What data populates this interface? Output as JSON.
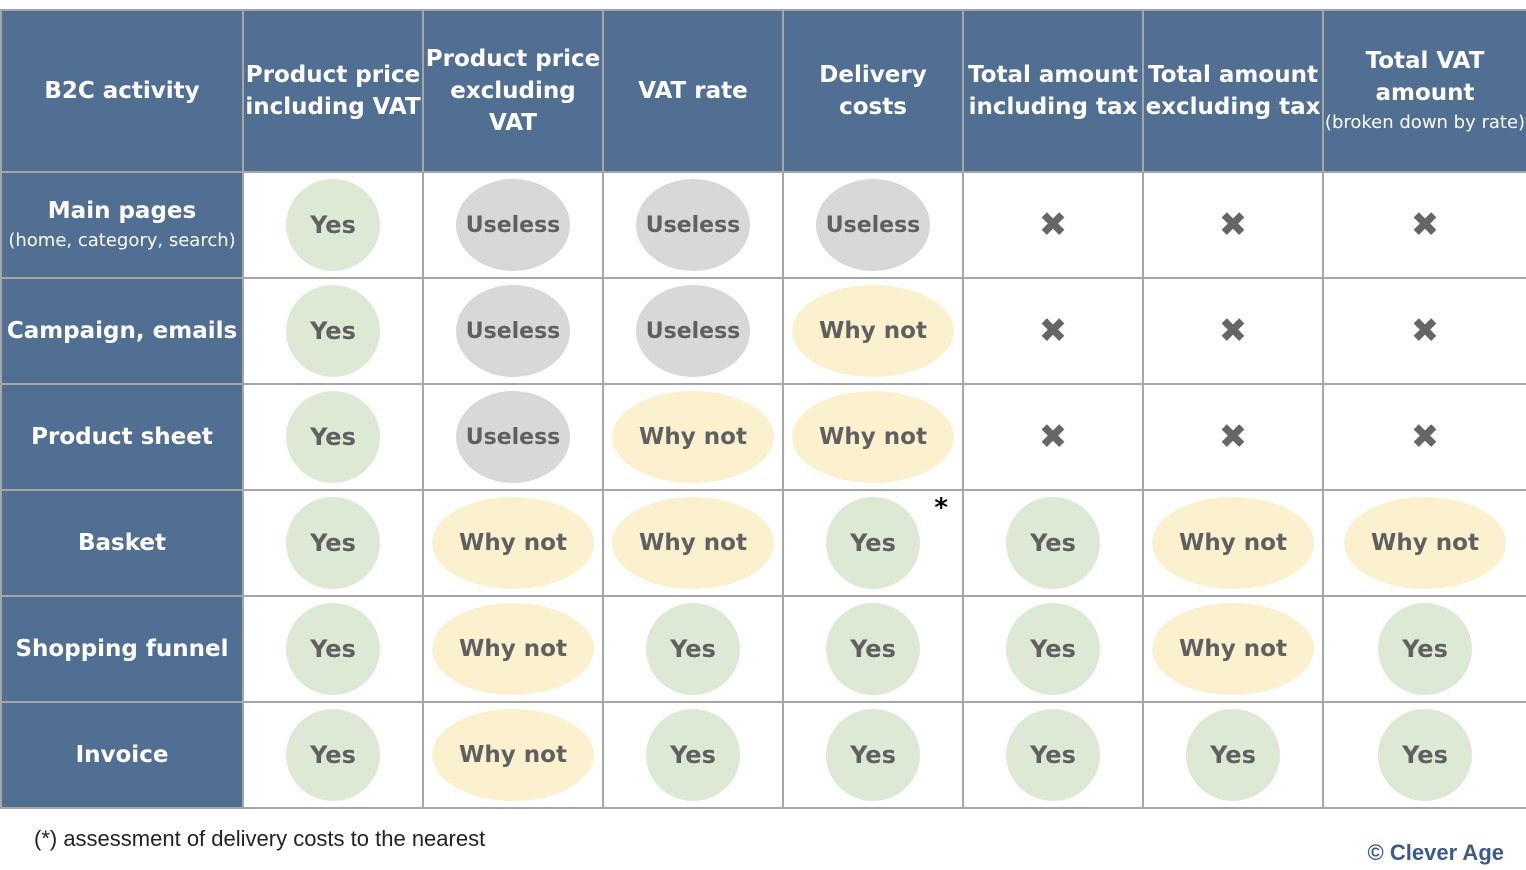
{
  "table": {
    "columns": [
      {
        "label": "B2C activity",
        "sub": ""
      },
      {
        "label": "Product price including VAT",
        "sub": ""
      },
      {
        "label": "Product price excluding VAT",
        "sub": ""
      },
      {
        "label": "VAT rate",
        "sub": ""
      },
      {
        "label": "Delivery costs",
        "sub": ""
      },
      {
        "label": "Total amount including tax",
        "sub": ""
      },
      {
        "label": "Total amount excluding tax",
        "sub": ""
      },
      {
        "label": "Total VAT amount",
        "sub": "(broken down by rate)"
      }
    ],
    "rows": [
      {
        "label": "Main pages",
        "sub": "(home, category, search)",
        "cells": [
          "Yes",
          "Useless",
          "Useless",
          "Useless",
          "✖",
          "✖",
          "✖"
        ]
      },
      {
        "label": "Campaign, emails",
        "sub": "",
        "cells": [
          "Yes",
          "Useless",
          "Useless",
          "Why not",
          "✖",
          "✖",
          "✖"
        ]
      },
      {
        "label": "Product sheet",
        "sub": "",
        "cells": [
          "Yes",
          "Useless",
          "Why not",
          "Why not",
          "✖",
          "✖",
          "✖"
        ]
      },
      {
        "label": "Basket",
        "sub": "",
        "cells": [
          "Yes",
          "Why not",
          "Why not",
          "Yes",
          "Yes",
          "Why not",
          "Why not"
        ]
      },
      {
        "label": "Shopping funnel",
        "sub": "",
        "cells": [
          "Yes",
          "Why not",
          "Yes",
          "Yes",
          "Yes",
          "Why not",
          "Yes"
        ]
      },
      {
        "label": "Invoice",
        "sub": "",
        "cells": [
          "Yes",
          "Why not",
          "Yes",
          "Yes",
          "Yes",
          "Yes",
          "Yes"
        ]
      }
    ],
    "asterisk_mark": "*"
  },
  "footnote": "(*) assessment of delivery costs to the nearest",
  "brand": "© Clever Age",
  "colors": {
    "header_bg": "#516f93",
    "yes": "#dde9d5",
    "useless": "#d8d8d8",
    "why_not": "#fcf1cf",
    "text": "#606060"
  }
}
